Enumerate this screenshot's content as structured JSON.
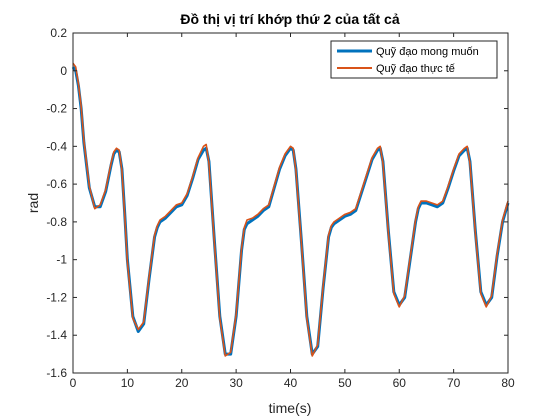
{
  "chart_data": {
    "type": "line",
    "title": "Đồ thị vị trí khớp thứ 2 của tất cả",
    "xlabel": "time(s)",
    "ylabel": "rad",
    "xlim": [
      0,
      80
    ],
    "ylim": [
      -1.6,
      0.2
    ],
    "xticks": [
      0,
      10,
      20,
      30,
      40,
      50,
      60,
      70,
      80
    ],
    "yticks": [
      0.2,
      0,
      -0.2,
      -0.4,
      -0.6,
      -0.8,
      -1,
      -1.2,
      -1.4,
      -1.6
    ],
    "xtick_labels": [
      "0",
      "10",
      "20",
      "30",
      "40",
      "50",
      "60",
      "70",
      "80"
    ],
    "ytick_labels": [
      "0.2",
      "0",
      "-0.2",
      "-0.4",
      "-0.6",
      "-0.8",
      "-1",
      "-1.2",
      "-1.4",
      "-1.6"
    ],
    "grid": false,
    "legend_position": "top-right",
    "x": [
      0,
      0.5,
      1,
      1.5,
      2,
      3,
      4,
      5,
      6,
      7,
      7.5,
      8,
      8.5,
      9,
      9.5,
      10,
      11,
      12,
      13,
      14,
      15,
      15.5,
      16,
      17,
      18,
      19,
      20,
      21,
      22,
      23,
      24,
      24.5,
      25,
      26,
      27,
      28,
      29,
      30,
      31,
      31.5,
      32,
      33,
      34,
      35,
      36,
      37,
      38,
      39,
      40,
      40.5,
      41,
      42,
      43,
      44,
      45,
      46,
      47,
      47.5,
      48,
      49,
      50,
      51,
      52,
      53,
      54,
      55,
      56,
      56.5,
      57,
      58,
      59,
      60,
      61,
      62,
      63,
      63.5,
      64,
      65,
      66,
      67,
      68,
      69,
      70,
      71,
      72,
      72.5,
      73,
      74,
      75,
      76,
      77,
      78,
      79,
      80
    ],
    "series": [
      {
        "name": "Quỹ đạo mong muốn",
        "color": "#0072BD",
        "values": [
          0.02,
          0.0,
          -0.08,
          -0.2,
          -0.38,
          -0.62,
          -0.72,
          -0.72,
          -0.64,
          -0.5,
          -0.44,
          -0.42,
          -0.43,
          -0.52,
          -0.75,
          -1.0,
          -1.3,
          -1.38,
          -1.34,
          -1.1,
          -0.88,
          -0.83,
          -0.8,
          -0.78,
          -0.75,
          -0.72,
          -0.71,
          -0.66,
          -0.57,
          -0.47,
          -0.42,
          -0.41,
          -0.48,
          -0.9,
          -1.3,
          -1.5,
          -1.5,
          -1.3,
          -0.95,
          -0.84,
          -0.81,
          -0.79,
          -0.77,
          -0.74,
          -0.72,
          -0.62,
          -0.52,
          -0.45,
          -0.41,
          -0.42,
          -0.52,
          -0.9,
          -1.3,
          -1.5,
          -1.46,
          -1.15,
          -0.88,
          -0.83,
          -0.81,
          -0.79,
          -0.77,
          -0.76,
          -0.74,
          -0.65,
          -0.56,
          -0.47,
          -0.42,
          -0.41,
          -0.48,
          -0.85,
          -1.17,
          -1.24,
          -1.2,
          -1.0,
          -0.8,
          -0.73,
          -0.7,
          -0.7,
          -0.71,
          -0.72,
          -0.7,
          -0.62,
          -0.53,
          -0.45,
          -0.42,
          -0.41,
          -0.48,
          -0.85,
          -1.17,
          -1.24,
          -1.2,
          -0.98,
          -0.8,
          -0.7
        ]
      },
      {
        "name": "Quỹ đạo thực tế",
        "color": "#D95319",
        "values": [
          0.04,
          0.02,
          -0.07,
          -0.19,
          -0.37,
          -0.61,
          -0.73,
          -0.71,
          -0.63,
          -0.49,
          -0.43,
          -0.41,
          -0.42,
          -0.53,
          -0.76,
          -1.01,
          -1.31,
          -1.37,
          -1.33,
          -1.09,
          -0.87,
          -0.82,
          -0.79,
          -0.77,
          -0.74,
          -0.71,
          -0.7,
          -0.65,
          -0.56,
          -0.46,
          -0.4,
          -0.39,
          -0.49,
          -0.91,
          -1.31,
          -1.51,
          -1.49,
          -1.29,
          -0.94,
          -0.83,
          -0.79,
          -0.78,
          -0.76,
          -0.73,
          -0.71,
          -0.61,
          -0.51,
          -0.44,
          -0.4,
          -0.41,
          -0.53,
          -0.91,
          -1.31,
          -1.51,
          -1.45,
          -1.14,
          -0.87,
          -0.82,
          -0.8,
          -0.78,
          -0.76,
          -0.75,
          -0.73,
          -0.64,
          -0.55,
          -0.46,
          -0.41,
          -0.4,
          -0.49,
          -0.86,
          -1.18,
          -1.25,
          -1.19,
          -0.99,
          -0.79,
          -0.72,
          -0.69,
          -0.69,
          -0.7,
          -0.71,
          -0.69,
          -0.61,
          -0.52,
          -0.44,
          -0.41,
          -0.4,
          -0.49,
          -0.86,
          -1.18,
          -1.25,
          -1.19,
          -0.97,
          -0.79,
          -0.69
        ]
      }
    ]
  }
}
